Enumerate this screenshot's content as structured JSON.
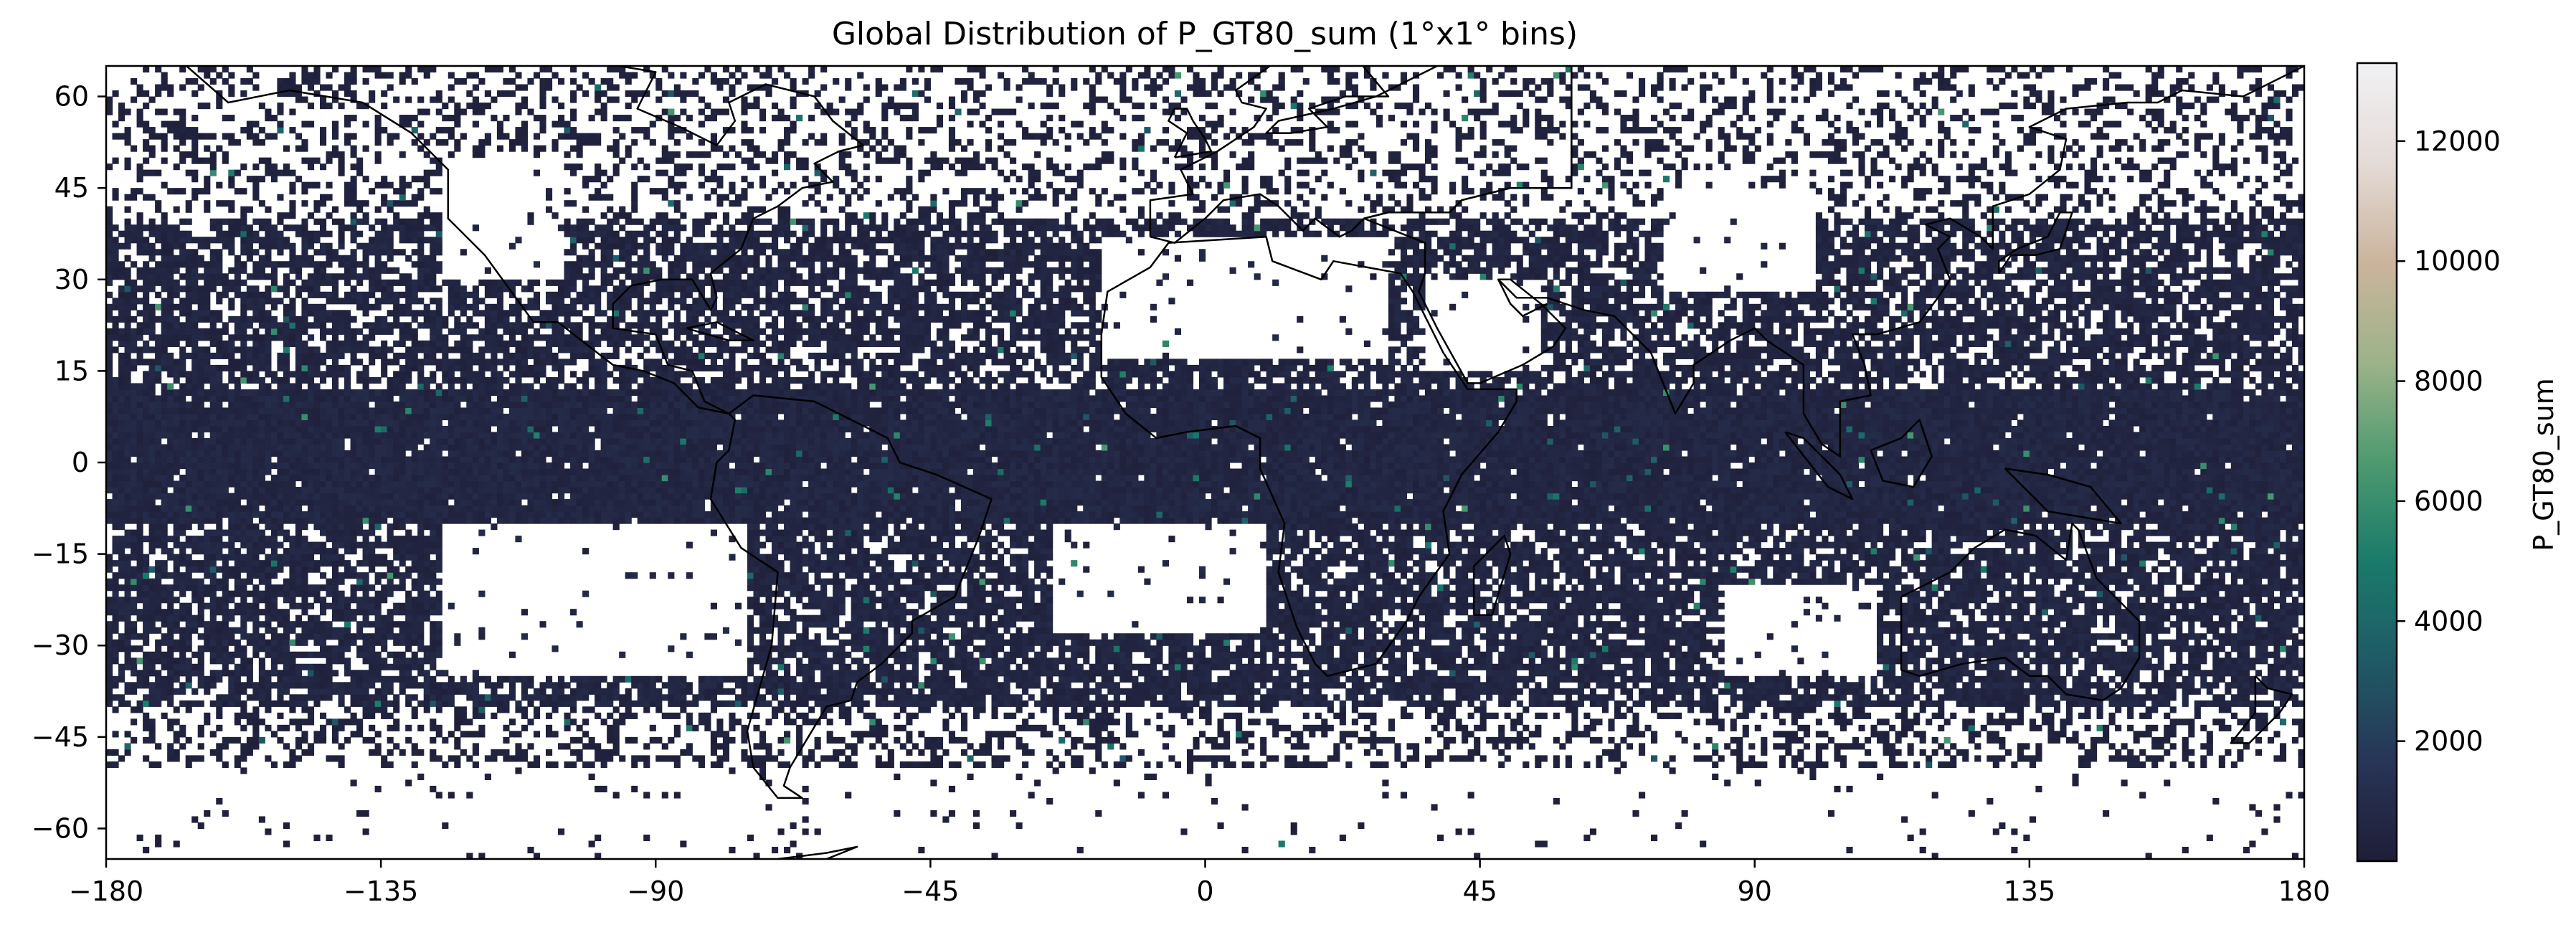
{
  "chart_data": {
    "type": "heatmap",
    "title": "Global Distribution of P_GT80_sum (1°x1° bins)",
    "xlabel": "",
    "ylabel": "",
    "xlim": [
      -180,
      180
    ],
    "ylim": [
      -65,
      65
    ],
    "bin_size_deg": 1,
    "x_ticks": [
      -180,
      -135,
      -90,
      -45,
      0,
      45,
      90,
      135,
      180
    ],
    "y_ticks": [
      -60,
      -45,
      -30,
      -15,
      0,
      15,
      30,
      45,
      60
    ],
    "x_tick_labels": [
      "−180",
      "−135",
      "−90",
      "−45",
      "0",
      "45",
      "90",
      "135",
      "180"
    ],
    "y_tick_labels": [
      "−60",
      "−45",
      "−30",
      "−15",
      "0",
      "15",
      "30",
      "45",
      "60"
    ],
    "colorbar": {
      "label": "P_GT80_sum",
      "range": [
        0,
        13300
      ],
      "ticks": [
        2000,
        4000,
        6000,
        8000,
        10000,
        12000
      ],
      "tick_labels": [
        "2000",
        "4000",
        "6000",
        "8000",
        "10000",
        "12000"
      ],
      "colormap_stops": [
        "#1f1e38",
        "#283556",
        "#1f5a66",
        "#1a7a6a",
        "#4d9a70",
        "#9db389",
        "#cbb49c",
        "#e4dbd7",
        "#f1f1f4"
      ]
    },
    "overlays": [
      "coastlines",
      "country borders (dotted)"
    ],
    "colors": {
      "no_data": "#ffffff",
      "dominant_bin": "#26243f"
    },
    "grid": false,
    "data_regions": [
      {
        "name": "equatorial band",
        "lat": [
          -10,
          12
        ],
        "lon": [
          -180,
          180
        ],
        "fill_fraction": 0.97,
        "typical_value": 600
      },
      {
        "name": "north subtropical band",
        "lat": [
          12,
          40
        ],
        "lon": [
          -180,
          180
        ],
        "fill_fraction": 0.72,
        "typical_value": 500
      },
      {
        "name": "south subtropical band",
        "lat": [
          -40,
          -10
        ],
        "lon": [
          -180,
          180
        ],
        "fill_fraction": 0.78,
        "typical_value": 550
      },
      {
        "name": "high northern latitudes",
        "lat": [
          40,
          65
        ],
        "lon": [
          -180,
          180
        ],
        "fill_fraction": 0.3,
        "typical_value": 300
      },
      {
        "name": "southern ocean margin",
        "lat": [
          -50,
          -40
        ],
        "lon": [
          -180,
          180
        ],
        "fill_fraction": 0.35,
        "typical_value": 300
      },
      {
        "name": "far southern latitudes",
        "lat": [
          -65,
          -50
        ],
        "lon": [
          -180,
          180
        ],
        "fill_fraction": 0.03,
        "typical_value": 200
      }
    ],
    "empty_regions": [
      {
        "name": "Sahara / North Africa",
        "lat": [
          17,
          37
        ],
        "lon": [
          -17,
          30
        ]
      },
      {
        "name": "Arabian Peninsula",
        "lat": [
          15,
          30
        ],
        "lon": [
          36,
          55
        ]
      },
      {
        "name": "Tibetan Plateau / Central Asia",
        "lat": [
          28,
          45
        ],
        "lon": [
          75,
          100
        ]
      },
      {
        "name": "Southeast Pacific subtropical high",
        "lat": [
          -35,
          -10
        ],
        "lon": [
          -125,
          -75
        ]
      },
      {
        "name": "South Atlantic subtropical high",
        "lat": [
          -28,
          -10
        ],
        "lon": [
          -25,
          10
        ]
      },
      {
        "name": "Southeast Indian Ocean high",
        "lat": [
          -35,
          -20
        ],
        "lon": [
          85,
          110
        ]
      },
      {
        "name": "Western North America",
        "lat": [
          30,
          50
        ],
        "lon": [
          -125,
          -105
        ]
      }
    ],
    "max_value_approx": 13300
  }
}
